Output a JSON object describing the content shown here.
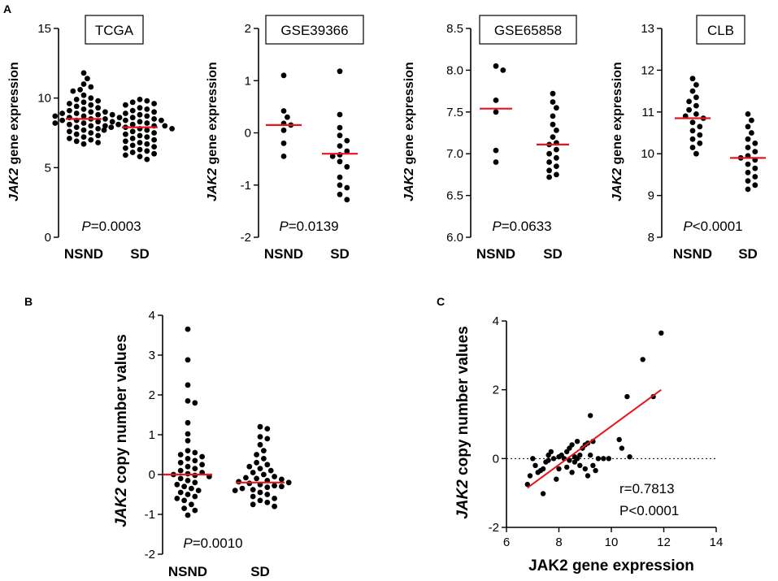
{
  "figure": {
    "panel_labels": [
      "A",
      "B",
      "C"
    ]
  },
  "colors": {
    "median": "#e8141b",
    "points": "#000000",
    "fit_line": "#e8141b"
  },
  "chart_data": [
    {
      "id": "tcga",
      "type": "scatter",
      "subtype": "dot-plot",
      "title": "TCGA",
      "ylabel_italic": "JAK2",
      "ylabel_rest": " gene expression",
      "categories": [
        "NSND",
        "SD"
      ],
      "ylim": [
        0,
        15
      ],
      "yticks": [
        0,
        5,
        10,
        15
      ],
      "p_symbol": "P",
      "p_rest": "=0.0003",
      "medians": [
        8.5,
        7.9
      ],
      "groups": [
        [
          11.8,
          11.4,
          11.0,
          10.8,
          10.6,
          10.5,
          10.2,
          10.0,
          9.9,
          9.8,
          9.7,
          9.6,
          9.5,
          9.4,
          9.3,
          9.2,
          9.1,
          9.0,
          9.0,
          8.9,
          8.9,
          8.8,
          8.8,
          8.7,
          8.7,
          8.6,
          8.6,
          8.5,
          8.5,
          8.4,
          8.4,
          8.3,
          8.3,
          8.2,
          8.2,
          8.1,
          8.0,
          8.0,
          7.9,
          7.8,
          7.7,
          7.6,
          7.5,
          7.4,
          7.3,
          7.2,
          7.1,
          7.0,
          6.9,
          6.8,
          6.7
        ],
        [
          9.9,
          9.8,
          9.7,
          9.6,
          9.5,
          9.3,
          9.2,
          9.1,
          9.0,
          8.9,
          8.8,
          8.7,
          8.6,
          8.5,
          8.4,
          8.4,
          8.3,
          8.2,
          8.1,
          8.1,
          8.0,
          8.0,
          7.9,
          7.9,
          7.8,
          7.8,
          7.7,
          7.7,
          7.6,
          7.5,
          7.4,
          7.3,
          7.2,
          7.1,
          7.0,
          6.9,
          6.8,
          6.7,
          6.6,
          6.5,
          6.4,
          6.3,
          6.2,
          6.1,
          6.0,
          5.9,
          5.8,
          5.6
        ]
      ]
    },
    {
      "id": "gse39366",
      "type": "scatter",
      "subtype": "dot-plot",
      "title": "GSE39366",
      "ylabel_italic": "JAK2",
      "ylabel_rest": " gene expression",
      "categories": [
        "NSND",
        "SD"
      ],
      "ylim": [
        -2,
        2
      ],
      "yticks": [
        -2,
        -1,
        0,
        1,
        2
      ],
      "p_symbol": "P",
      "p_rest": "=0.0139",
      "medians": [
        0.15,
        -0.4
      ],
      "groups": [
        [
          1.1,
          0.42,
          0.3,
          0.18,
          0.15,
          0.05,
          -0.2,
          -0.45
        ],
        [
          1.18,
          0.35,
          0.1,
          -0.05,
          -0.15,
          -0.25,
          -0.35,
          -0.42,
          -0.45,
          -0.55,
          -0.65,
          -0.85,
          -1.0,
          -1.05,
          -1.18,
          -1.28
        ]
      ]
    },
    {
      "id": "gse65858",
      "type": "scatter",
      "subtype": "dot-plot",
      "title": "GSE65858",
      "ylabel_italic": "JAK2",
      "ylabel_rest": " gene expression",
      "categories": [
        "NSND",
        "SD"
      ],
      "ylim": [
        6.0,
        8.5
      ],
      "yticks": [
        6.0,
        6.5,
        7.0,
        7.5,
        8.0,
        8.5
      ],
      "p_symbol": "P",
      "p_rest": "=0.0633",
      "medians": [
        7.54,
        7.11
      ],
      "groups": [
        [
          8.05,
          8.0,
          7.64,
          7.5,
          7.04,
          6.9
        ],
        [
          7.72,
          7.62,
          7.55,
          7.45,
          7.35,
          7.28,
          7.2,
          7.13,
          7.11,
          7.05,
          7.0,
          6.95,
          6.9,
          6.85,
          6.8,
          6.75,
          6.72
        ]
      ]
    },
    {
      "id": "clb",
      "type": "scatter",
      "subtype": "dot-plot",
      "title": "CLB",
      "ylabel_italic": "JAK2",
      "ylabel_rest": " gene expression",
      "categories": [
        "NSND",
        "SD"
      ],
      "ylim": [
        8,
        13
      ],
      "yticks": [
        8,
        9,
        10,
        11,
        12,
        13
      ],
      "p_symbol": "P",
      "p_rest": "<0.0001",
      "medians": [
        10.85,
        9.9
      ],
      "groups": [
        [
          11.8,
          11.65,
          11.5,
          11.35,
          11.25,
          11.15,
          11.05,
          10.95,
          10.9,
          10.85,
          10.75,
          10.65,
          10.55,
          10.45,
          10.35,
          10.25,
          10.15,
          10.0
        ],
        [
          10.95,
          10.8,
          10.65,
          10.5,
          10.35,
          10.25,
          10.15,
          10.05,
          9.95,
          9.9,
          9.85,
          9.75,
          9.65,
          9.55,
          9.45,
          9.35,
          9.25,
          9.15
        ]
      ]
    },
    {
      "id": "copy-number",
      "type": "scatter",
      "subtype": "dot-plot",
      "title": "",
      "ylabel_italic": "JAK2",
      "ylabel_rest": " copy number values",
      "categories": [
        "NSND",
        "SD"
      ],
      "ylim": [
        -2,
        4
      ],
      "yticks": [
        -2,
        -1,
        0,
        1,
        2,
        3,
        4
      ],
      "p_symbol": "P",
      "p_rest": "=0.0010",
      "medians": [
        0.0,
        -0.2
      ],
      "groups": [
        [
          3.65,
          2.88,
          2.25,
          1.85,
          1.8,
          1.3,
          1.02,
          0.85,
          0.6,
          0.55,
          0.5,
          0.45,
          0.4,
          0.35,
          0.3,
          0.25,
          0.2,
          0.15,
          0.1,
          0.05,
          0.02,
          0.0,
          -0.02,
          -0.05,
          -0.1,
          -0.15,
          -0.2,
          -0.25,
          -0.3,
          -0.35,
          -0.4,
          -0.45,
          -0.5,
          -0.55,
          -0.6,
          -0.65,
          -0.75,
          -0.85,
          -0.9,
          -1.02
        ],
        [
          1.2,
          1.15,
          0.95,
          0.9,
          0.75,
          0.6,
          0.5,
          0.4,
          0.3,
          0.25,
          0.2,
          0.15,
          0.1,
          0.05,
          0.0,
          -0.05,
          -0.08,
          -0.1,
          -0.12,
          -0.15,
          -0.18,
          -0.2,
          -0.22,
          -0.25,
          -0.28,
          -0.3,
          -0.32,
          -0.35,
          -0.38,
          -0.4,
          -0.45,
          -0.5,
          -0.55,
          -0.6,
          -0.65,
          -0.7,
          -0.75,
          -0.8
        ]
      ]
    },
    {
      "id": "correlation",
      "type": "scatter",
      "xlabel": "JAK2 gene expression",
      "ylabel_italic": "JAK2",
      "ylabel_rest": " copy number values",
      "xlim": [
        6,
        14
      ],
      "ylim": [
        -2,
        4
      ],
      "xticks": [
        6,
        8,
        10,
        12,
        14
      ],
      "yticks": [
        -2,
        0,
        2,
        4
      ],
      "reference_y": 0,
      "fit": {
        "x": [
          6.8,
          11.9
        ],
        "y": [
          -0.85,
          2.0
        ]
      },
      "annotations": [
        "r=0.7813",
        "P<0.0001"
      ],
      "points": [
        [
          11.9,
          3.65
        ],
        [
          11.2,
          2.88
        ],
        [
          10.6,
          1.8
        ],
        [
          11.6,
          1.8
        ],
        [
          9.2,
          1.25
        ],
        [
          10.3,
          0.55
        ],
        [
          10.4,
          0.3
        ],
        [
          10.7,
          0.05
        ],
        [
          9.3,
          0.5
        ],
        [
          9.1,
          0.45
        ],
        [
          9.0,
          0.4
        ],
        [
          8.9,
          0.3
        ],
        [
          8.7,
          0.5
        ],
        [
          8.5,
          0.4
        ],
        [
          8.4,
          0.3
        ],
        [
          8.3,
          0.2
        ],
        [
          8.1,
          0.1
        ],
        [
          8.0,
          0.05
        ],
        [
          7.8,
          0.0
        ],
        [
          7.6,
          -0.05
        ],
        [
          7.5,
          -0.1
        ],
        [
          7.4,
          -0.3
        ],
        [
          7.3,
          -0.35
        ],
        [
          7.2,
          -0.4
        ],
        [
          6.9,
          -0.5
        ],
        [
          6.8,
          -0.75
        ],
        [
          7.0,
          0.0
        ],
        [
          7.7,
          0.2
        ],
        [
          8.2,
          0.0
        ],
        [
          8.6,
          -0.1
        ],
        [
          8.8,
          -0.2
        ],
        [
          9.0,
          -0.3
        ],
        [
          9.1,
          -0.5
        ],
        [
          9.3,
          -0.2
        ],
        [
          9.5,
          0.0
        ],
        [
          9.7,
          0.0
        ],
        [
          9.9,
          0.0
        ],
        [
          8.4,
          -0.05
        ],
        [
          8.6,
          0.05
        ],
        [
          8.8,
          0.1
        ],
        [
          7.4,
          -1.02
        ],
        [
          8.0,
          -0.3
        ],
        [
          7.9,
          -0.6
        ],
        [
          8.3,
          -0.25
        ],
        [
          8.5,
          -0.4
        ],
        [
          8.7,
          0.0
        ],
        [
          9.2,
          0.1
        ],
        [
          9.4,
          -0.35
        ],
        [
          7.1,
          -0.2
        ],
        [
          7.6,
          0.1
        ]
      ]
    }
  ]
}
